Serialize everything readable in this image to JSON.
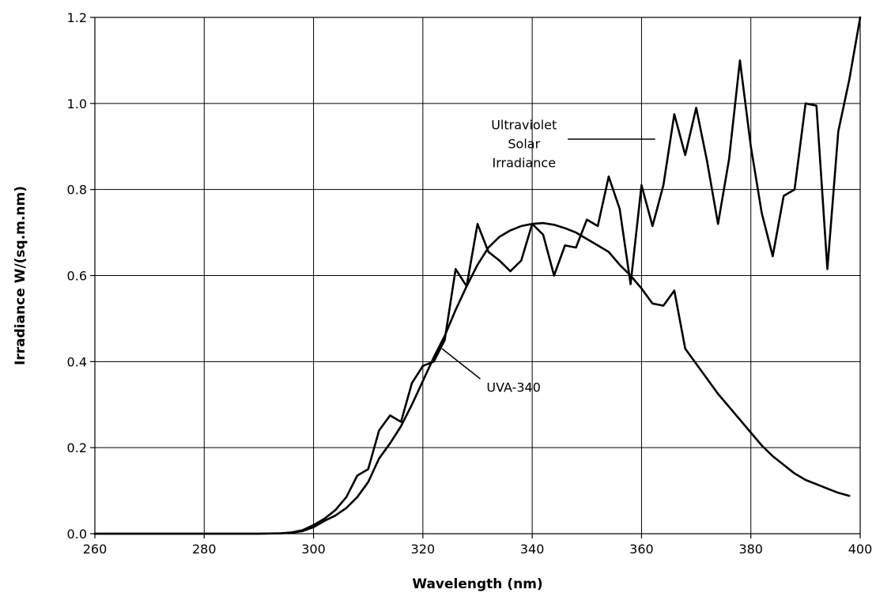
{
  "chart_data": {
    "type": "line",
    "title": "",
    "xlabel": "Wavelength (nm)",
    "ylabel": "Irradiance W/(sq.m.nm)",
    "xlim": [
      260,
      400
    ],
    "ylim": [
      0.0,
      1.2
    ],
    "x_ticks": [
      260,
      280,
      300,
      320,
      340,
      360,
      380,
      400
    ],
    "x_tick_labels": [
      "260",
      "280",
      "300",
      "320",
      "340",
      "360",
      "380",
      "400"
    ],
    "y_ticks": [
      0.0,
      0.2,
      0.4,
      0.6,
      0.8,
      1.0,
      1.2
    ],
    "y_tick_labels": [
      "0.0",
      "0.2",
      "0.4",
      "0.6",
      "0.8",
      "1.0",
      "1.2"
    ],
    "grid": true,
    "legend": "none",
    "annotations": [
      {
        "lines": [
          "Ultraviolet",
          "Solar",
          "Irradiance"
        ],
        "series": "Ultraviolet Solar Irradiance",
        "text_at": [
          338.5,
          0.94
        ],
        "leader_from": [
          346.5,
          0.917
        ],
        "leader_to": [
          362.5,
          0.917
        ]
      },
      {
        "lines": [
          "UVA-340"
        ],
        "series": "UVA-340",
        "text_at": [
          336.6,
          0.33
        ],
        "leader_from": [
          323.5,
          0.43
        ],
        "leader_to": [
          330.5,
          0.36
        ]
      }
    ],
    "series": [
      {
        "name": "Ultraviolet Solar Irradiance",
        "color": "#000000",
        "x": [
          260,
          290,
          294,
          296,
          298,
          300,
          302,
          304,
          306,
          308,
          310,
          312,
          314,
          316,
          318,
          320,
          322,
          324,
          326,
          328,
          330,
          332,
          334,
          336,
          338,
          340,
          342,
          344,
          346,
          348,
          350,
          352,
          354,
          356,
          358,
          360,
          362,
          364,
          366,
          368,
          370,
          372,
          374,
          376,
          378,
          380,
          382,
          384,
          386,
          388,
          390,
          392,
          394,
          396,
          398,
          400
        ],
        "y": [
          0.0,
          0.0,
          0.001,
          0.003,
          0.008,
          0.02,
          0.035,
          0.055,
          0.085,
          0.135,
          0.15,
          0.24,
          0.275,
          0.26,
          0.35,
          0.39,
          0.4,
          0.45,
          0.615,
          0.575,
          0.72,
          0.655,
          0.635,
          0.61,
          0.635,
          0.72,
          0.695,
          0.6,
          0.67,
          0.665,
          0.73,
          0.715,
          0.83,
          0.755,
          0.58,
          0.81,
          0.715,
          0.81,
          0.975,
          0.88,
          0.99,
          0.865,
          0.72,
          0.87,
          1.1,
          0.9,
          0.745,
          0.645,
          0.785,
          0.8,
          1.0,
          0.995,
          0.615,
          0.935,
          1.055,
          1.2
        ]
      },
      {
        "name": "UVA-340",
        "color": "#000000",
        "x": [
          260,
          290,
          294,
          296,
          298,
          300,
          302,
          304,
          306,
          308,
          310,
          312,
          314,
          316,
          318,
          320,
          322,
          324,
          326,
          328,
          330,
          332,
          334,
          336,
          338,
          340,
          342,
          344,
          346,
          348,
          350,
          352,
          354,
          356,
          358,
          360,
          362,
          364,
          366,
          368,
          370,
          372,
          374,
          376,
          378,
          380,
          382,
          384,
          386,
          388,
          390,
          392,
          394,
          396,
          398
        ],
        "y": [
          0.0,
          0.0,
          0.001,
          0.002,
          0.006,
          0.015,
          0.03,
          0.042,
          0.06,
          0.085,
          0.12,
          0.175,
          0.21,
          0.25,
          0.3,
          0.355,
          0.41,
          0.46,
          0.52,
          0.575,
          0.625,
          0.665,
          0.69,
          0.705,
          0.715,
          0.72,
          0.722,
          0.718,
          0.71,
          0.7,
          0.685,
          0.67,
          0.655,
          0.625,
          0.6,
          0.57,
          0.535,
          0.53,
          0.565,
          0.43,
          0.395,
          0.36,
          0.325,
          0.295,
          0.265,
          0.235,
          0.205,
          0.18,
          0.16,
          0.14,
          0.125,
          0.115,
          0.105,
          0.095,
          0.088
        ]
      }
    ]
  }
}
